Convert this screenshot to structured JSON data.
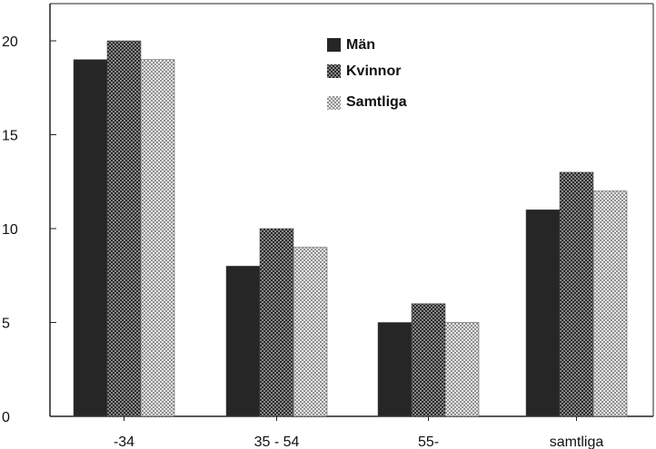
{
  "chart_data": {
    "type": "bar",
    "title": "",
    "xlabel": "",
    "ylabel": "",
    "categories": [
      "-34",
      "35 - 54",
      "55-",
      "samtliga"
    ],
    "series": [
      {
        "name": "Män",
        "values": [
          19,
          8,
          5,
          11
        ],
        "pattern": "solid-dark"
      },
      {
        "name": "Kvinnor",
        "values": [
          20,
          10,
          6,
          13
        ],
        "pattern": "dark-checker"
      },
      {
        "name": "Samtliga",
        "values": [
          19,
          9,
          5,
          12
        ],
        "pattern": "light-checker"
      }
    ],
    "ylim": [
      0,
      20
    ],
    "yticks": [
      0,
      5,
      10,
      15,
      20
    ],
    "grid": false,
    "legend_position": "top-right"
  }
}
